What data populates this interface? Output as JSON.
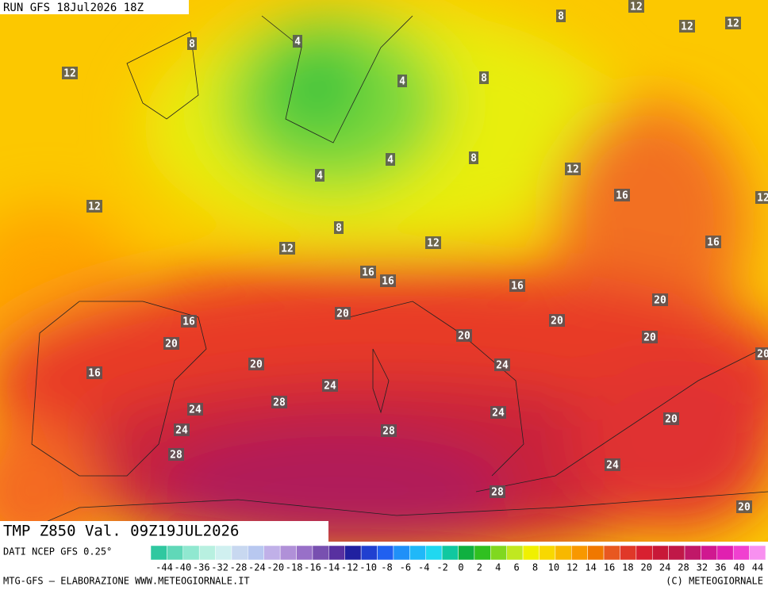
{
  "header": {
    "run": "RUN GFS 18Jul2026 18Z"
  },
  "footer": {
    "field": "TMP Z850 Val. 09Z19JUL2026",
    "source": "DATI NCEP GFS 0.25°",
    "credit": "MTG-GFS — ELABORAZIONE WWW.METEOGIORNALE.IT",
    "copyright": "(C) METEOGIORNALE"
  },
  "colorbar": {
    "labels": [
      -44,
      -40,
      -36,
      -32,
      -28,
      -24,
      -20,
      -18,
      -16,
      -14,
      -12,
      -10,
      -8,
      -6,
      -4,
      -2,
      0,
      2,
      4,
      6,
      8,
      10,
      12,
      14,
      16,
      18,
      20,
      24,
      28,
      32,
      36,
      40,
      44
    ]
  },
  "map_labels": [
    8,
    12,
    12,
    12,
    8,
    4,
    12,
    4,
    8,
    4,
    8,
    4,
    12,
    16,
    12,
    8,
    12,
    12,
    16,
    16,
    16,
    16,
    20,
    20,
    16,
    20,
    20,
    20,
    20,
    20,
    24,
    16,
    24,
    28,
    24,
    24,
    20,
    24,
    28,
    28,
    24,
    28,
    20,
    20,
    12
  ]
}
